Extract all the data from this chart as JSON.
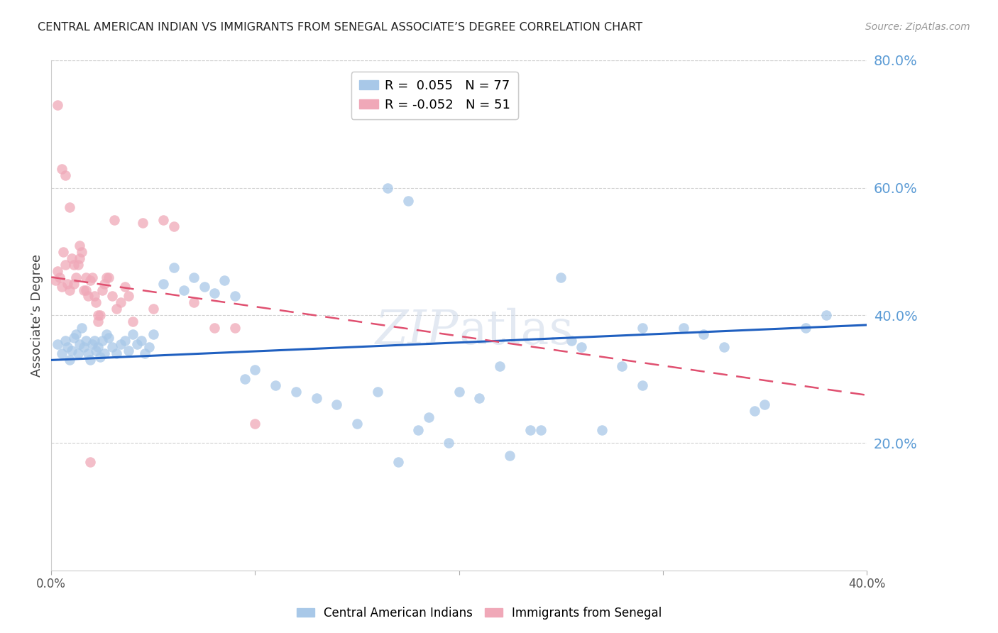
{
  "title": "CENTRAL AMERICAN INDIAN VS IMMIGRANTS FROM SENEGAL ASSOCIATE’S DEGREE CORRELATION CHART",
  "source": "Source: ZipAtlas.com",
  "ylabel": "Associate’s Degree",
  "x_min": 0.0,
  "x_max": 0.4,
  "y_min": 0.0,
  "y_max": 0.8,
  "y_ticks_right": [
    0.2,
    0.4,
    0.6,
    0.8
  ],
  "y_tick_labels_right": [
    "20.0%",
    "40.0%",
    "60.0%",
    "80.0%"
  ],
  "legend_blue": "R =  0.055   N = 77",
  "legend_pink": "R = -0.052   N = 51",
  "legend_bottom": [
    "Central American Indians",
    "Immigrants from Senegal"
  ],
  "blue_color": "#a8c8e8",
  "pink_color": "#f0a8b8",
  "trendline_blue_color": "#2060c0",
  "trendline_pink_color": "#e05070",
  "grid_color": "#d0d0d0",
  "blue_trend_x": [
    0.0,
    0.4
  ],
  "blue_trend_y": [
    0.33,
    0.385
  ],
  "pink_trend_x": [
    0.0,
    0.4
  ],
  "pink_trend_y": [
    0.46,
    0.275
  ],
  "blue_scatter_x": [
    0.003,
    0.005,
    0.007,
    0.008,
    0.009,
    0.01,
    0.011,
    0.012,
    0.013,
    0.014,
    0.015,
    0.016,
    0.017,
    0.018,
    0.019,
    0.02,
    0.021,
    0.022,
    0.023,
    0.024,
    0.025,
    0.026,
    0.027,
    0.028,
    0.03,
    0.032,
    0.034,
    0.036,
    0.038,
    0.04,
    0.042,
    0.044,
    0.046,
    0.048,
    0.05,
    0.055,
    0.06,
    0.065,
    0.07,
    0.075,
    0.08,
    0.085,
    0.09,
    0.095,
    0.1,
    0.11,
    0.12,
    0.13,
    0.14,
    0.15,
    0.16,
    0.17,
    0.18,
    0.195,
    0.21,
    0.225,
    0.24,
    0.255,
    0.27,
    0.29,
    0.31,
    0.33,
    0.35,
    0.37,
    0.29,
    0.32,
    0.345,
    0.28,
    0.26,
    0.38,
    0.165,
    0.175,
    0.185,
    0.2,
    0.22,
    0.235,
    0.25
  ],
  "blue_scatter_y": [
    0.355,
    0.34,
    0.36,
    0.35,
    0.33,
    0.345,
    0.365,
    0.37,
    0.34,
    0.355,
    0.38,
    0.35,
    0.36,
    0.34,
    0.33,
    0.355,
    0.36,
    0.345,
    0.35,
    0.335,
    0.36,
    0.34,
    0.37,
    0.365,
    0.35,
    0.34,
    0.355,
    0.36,
    0.345,
    0.37,
    0.355,
    0.36,
    0.34,
    0.35,
    0.37,
    0.45,
    0.475,
    0.44,
    0.46,
    0.445,
    0.435,
    0.455,
    0.43,
    0.3,
    0.315,
    0.29,
    0.28,
    0.27,
    0.26,
    0.23,
    0.28,
    0.17,
    0.22,
    0.2,
    0.27,
    0.18,
    0.22,
    0.36,
    0.22,
    0.29,
    0.38,
    0.35,
    0.26,
    0.38,
    0.38,
    0.37,
    0.25,
    0.32,
    0.35,
    0.4,
    0.6,
    0.58,
    0.24,
    0.28,
    0.32,
    0.22,
    0.46
  ],
  "pink_scatter_x": [
    0.002,
    0.003,
    0.004,
    0.005,
    0.006,
    0.007,
    0.008,
    0.009,
    0.01,
    0.011,
    0.012,
    0.013,
    0.014,
    0.015,
    0.016,
    0.017,
    0.018,
    0.019,
    0.02,
    0.021,
    0.022,
    0.023,
    0.024,
    0.025,
    0.026,
    0.028,
    0.03,
    0.032,
    0.034,
    0.036,
    0.038,
    0.04,
    0.045,
    0.05,
    0.055,
    0.06,
    0.07,
    0.08,
    0.09,
    0.1,
    0.003,
    0.005,
    0.007,
    0.009,
    0.011,
    0.014,
    0.017,
    0.019,
    0.023,
    0.027,
    0.031
  ],
  "pink_scatter_y": [
    0.455,
    0.47,
    0.46,
    0.445,
    0.5,
    0.48,
    0.45,
    0.44,
    0.49,
    0.45,
    0.46,
    0.48,
    0.49,
    0.5,
    0.44,
    0.46,
    0.43,
    0.455,
    0.46,
    0.43,
    0.42,
    0.39,
    0.4,
    0.44,
    0.45,
    0.46,
    0.43,
    0.41,
    0.42,
    0.445,
    0.43,
    0.39,
    0.545,
    0.41,
    0.55,
    0.54,
    0.42,
    0.38,
    0.38,
    0.23,
    0.73,
    0.63,
    0.62,
    0.57,
    0.48,
    0.51,
    0.44,
    0.17,
    0.4,
    0.46,
    0.55
  ]
}
